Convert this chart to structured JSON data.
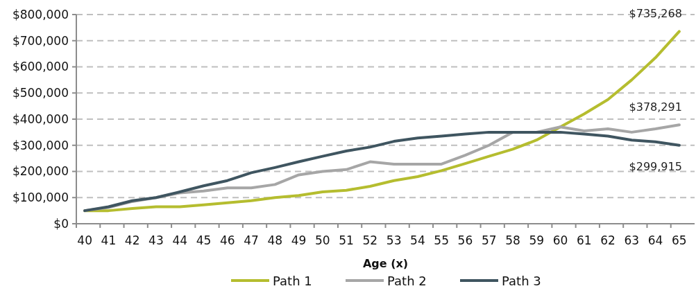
{
  "chart_data": {
    "type": "line",
    "xlabel": "Age (x)",
    "categories": [
      "40",
      "41",
      "42",
      "43",
      "44",
      "45",
      "46",
      "47",
      "48",
      "49",
      "50",
      "51",
      "52",
      "53",
      "54",
      "55",
      "56",
      "57",
      "58",
      "59",
      "60",
      "61",
      "62",
      "63",
      "64",
      "65"
    ],
    "series": [
      {
        "name": "Path 1",
        "color": "#b5bd2f",
        "values": [
          50000,
          50000,
          58000,
          65000,
          65000,
          72000,
          80000,
          88000,
          100000,
          108000,
          122000,
          128000,
          143000,
          165000,
          180000,
          203000,
          230000,
          258000,
          285000,
          320000,
          370000,
          420000,
          475000,
          550000,
          635000,
          735268
        ],
        "value_labels": [
          null,
          null,
          null,
          null,
          null,
          null,
          null,
          null,
          null,
          null,
          null,
          null,
          null,
          null,
          null,
          null,
          null,
          null,
          null,
          null,
          null,
          null,
          null,
          null,
          null,
          "$735,268"
        ]
      },
      {
        "name": "Path 2",
        "color": "#a6a6a6",
        "values": [
          50000,
          62000,
          85000,
          100000,
          118000,
          125000,
          137000,
          137000,
          150000,
          187000,
          200000,
          207000,
          237000,
          228000,
          228000,
          228000,
          262000,
          300000,
          350000,
          350000,
          370000,
          355000,
          363000,
          350000,
          363000,
          378291
        ],
        "value_labels": [
          null,
          null,
          null,
          null,
          null,
          null,
          null,
          null,
          null,
          null,
          null,
          null,
          null,
          null,
          null,
          null,
          null,
          null,
          null,
          null,
          null,
          null,
          null,
          null,
          null,
          "$378,291"
        ]
      },
      {
        "name": "Path 3",
        "color": "#3f5560",
        "values": [
          50000,
          65000,
          88000,
          100000,
          122000,
          145000,
          165000,
          195000,
          215000,
          237000,
          258000,
          278000,
          293000,
          315000,
          328000,
          335000,
          343000,
          350000,
          350000,
          350000,
          350000,
          343000,
          335000,
          320000,
          313000,
          299915
        ],
        "value_labels": [
          null,
          null,
          null,
          null,
          null,
          null,
          null,
          null,
          null,
          null,
          null,
          null,
          null,
          null,
          null,
          null,
          null,
          null,
          null,
          null,
          null,
          null,
          null,
          null,
          null,
          "$299,915"
        ]
      }
    ],
    "ylim": [
      0,
      800000
    ],
    "yticks": [
      {
        "value": 0,
        "label": "$0"
      },
      {
        "value": 100000,
        "label": "$100,000"
      },
      {
        "value": 200000,
        "label": "$200,000"
      },
      {
        "value": 300000,
        "label": "$300,000"
      },
      {
        "value": 400000,
        "label": "$400,000"
      },
      {
        "value": 500000,
        "label": "$500,000"
      },
      {
        "value": 600000,
        "label": "$600,000"
      },
      {
        "value": 700000,
        "label": "$700,000"
      },
      {
        "value": 800000,
        "label": "$800,000"
      }
    ],
    "grid": "y",
    "legend": "bottom",
    "marker": "none",
    "line_style": "solid"
  }
}
